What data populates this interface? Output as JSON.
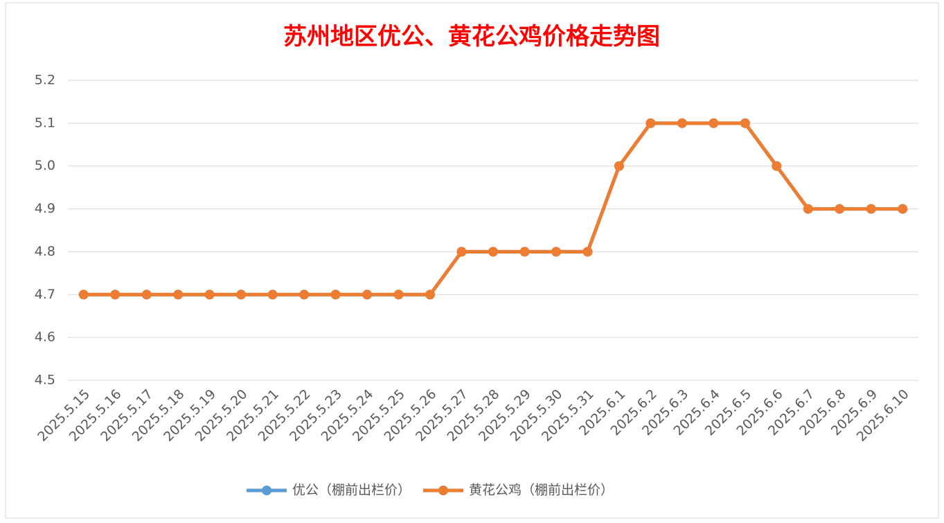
{
  "chart_data": {
    "type": "line",
    "title": "苏州地区优公、黄花公鸡价格走势图",
    "categories": [
      "2025.5.15",
      "2025.5.16",
      "2025.5.17",
      "2025.5.18",
      "2025.5.19",
      "2025.5.20",
      "2025.5.21",
      "2025.5.22",
      "2025.5.23",
      "2025.5.24",
      "2025.5.25",
      "2025.5.26",
      "2025.5.27",
      "2025.5.28",
      "2025.5.29",
      "2025.5.30",
      "2025.5.31",
      "2025.6.1",
      "2025.6.2",
      "2025.6.3",
      "2025.6.4",
      "2025.6.5",
      "2025.6.6",
      "2025.6.7",
      "2025.6.8",
      "2025.6.9",
      "2025.6.10"
    ],
    "series": [
      {
        "name": "优公（棚前出栏价）",
        "color": "#5b9bd5",
        "values": [
          4.7,
          4.7,
          4.7,
          4.7,
          4.7,
          4.7,
          4.7,
          4.7,
          4.7,
          4.7,
          4.7,
          4.7,
          4.8,
          4.8,
          4.8,
          4.8,
          4.8,
          5,
          5.1,
          5.1,
          5.1,
          5.1,
          5,
          4.9,
          4.9,
          4.9,
          4.9
        ]
      },
      {
        "name": "黄花公鸡（棚前出栏价）",
        "color": "#ed7d31",
        "values": [
          4.7,
          4.7,
          4.7,
          4.7,
          4.7,
          4.7,
          4.7,
          4.7,
          4.7,
          4.7,
          4.7,
          4.7,
          4.8,
          4.8,
          4.8,
          4.8,
          4.8,
          5,
          5.1,
          5.1,
          5.1,
          5.1,
          5,
          4.9,
          4.9,
          4.9,
          4.9
        ]
      }
    ],
    "ylim": [
      4.5,
      5.2
    ],
    "yticks": [
      4.5,
      4.6,
      4.7,
      4.8,
      4.9,
      {
        "value": 5,
        "label": "5.0"
      },
      5.1,
      5.2
    ],
    "grid": true,
    "legend": "bottom"
  }
}
